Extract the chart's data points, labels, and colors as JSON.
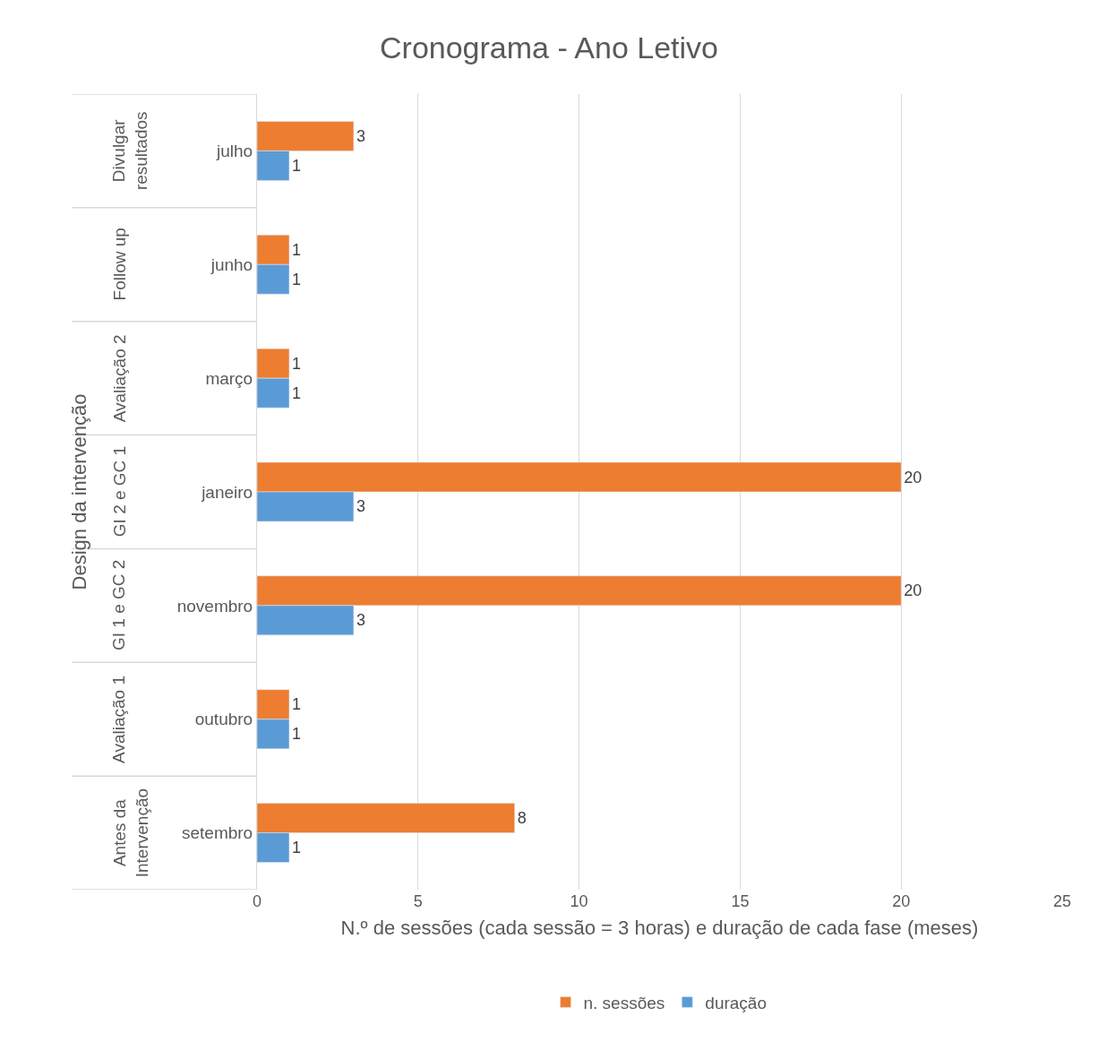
{
  "chart_data": {
    "type": "bar",
    "orientation": "horizontal",
    "title": "Cronograma - Ano Letivo",
    "xlabel": "N.º de sessões (cada sessão = 3 horas) e duração de cada fase (meses)",
    "ylabel": "Design da intervenção",
    "categories": [
      "julho",
      "junho",
      "março",
      "janeiro",
      "novembro",
      "outubro",
      "setembro"
    ],
    "series": [
      {
        "name": "n. sessões",
        "color": "#ed7d31",
        "values": [
          3,
          1,
          1,
          20,
          20,
          1,
          8
        ]
      },
      {
        "name": "duração",
        "color": "#5b9bd5",
        "values": [
          1,
          1,
          1,
          3,
          3,
          1,
          1
        ]
      }
    ],
    "annotations": [
      "Divulgar\nresultados",
      "Follow up",
      "Avaliação 2",
      "GI 2 e GC 1",
      "GI 1 e GC 2",
      "Avaliação 1",
      "Antes da\nIntervenção"
    ],
    "xlim": [
      0,
      25
    ],
    "xticks": [
      0,
      5,
      10,
      15,
      20,
      25
    ],
    "grid": "x",
    "legend": "bottom",
    "data_labels": true
  }
}
